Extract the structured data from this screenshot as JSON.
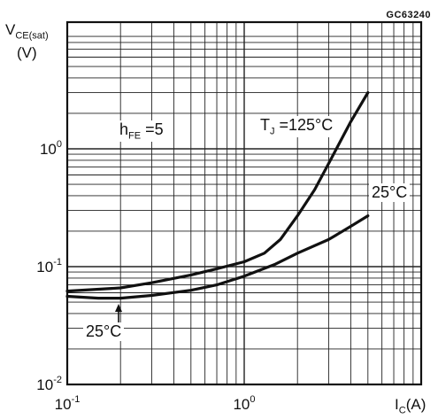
{
  "figure_id": "GC63240",
  "y_axis_label": {
    "main": "V",
    "sub": "CE(sat)",
    "unit": "(V)"
  },
  "x_axis_label": {
    "main": "I",
    "sub": "C",
    "unit": "(A)"
  },
  "annotations": {
    "hfe": {
      "main": "h",
      "sub": "FE",
      "rest": " =5"
    },
    "tj": {
      "main": "T",
      "sub": "J",
      "rest": " =125°C"
    },
    "t25_right": "25°C",
    "t25_bottom": "25°C"
  },
  "chart_data": {
    "type": "line",
    "title": "",
    "xlabel": "I_C (A)",
    "ylabel": "V_CE(sat) (V)",
    "x_scale": "log",
    "y_scale": "log",
    "xlim": [
      0.1,
      10
    ],
    "ylim": [
      0.01,
      5
    ],
    "x_tick_labels": [
      "10^-1",
      "10^0"
    ],
    "y_tick_labels": [
      "10^-2",
      "10^-1",
      "10^0"
    ],
    "grid": true,
    "series": [
      {
        "name": "125°C",
        "x": [
          0.1,
          0.2,
          0.3,
          0.5,
          0.7,
          1.0,
          1.3,
          1.6,
          2.0,
          2.5,
          3.0,
          4.0,
          5.0
        ],
        "y": [
          0.062,
          0.066,
          0.073,
          0.085,
          0.096,
          0.11,
          0.13,
          0.17,
          0.27,
          0.45,
          0.75,
          1.7,
          3.0
        ]
      },
      {
        "name": "25°C",
        "x": [
          0.1,
          0.15,
          0.2,
          0.3,
          0.5,
          0.7,
          1.0,
          1.5,
          2.0,
          3.0,
          4.0,
          5.0
        ],
        "y": [
          0.056,
          0.054,
          0.054,
          0.057,
          0.063,
          0.07,
          0.083,
          0.105,
          0.13,
          0.17,
          0.22,
          0.27
        ]
      }
    ]
  }
}
